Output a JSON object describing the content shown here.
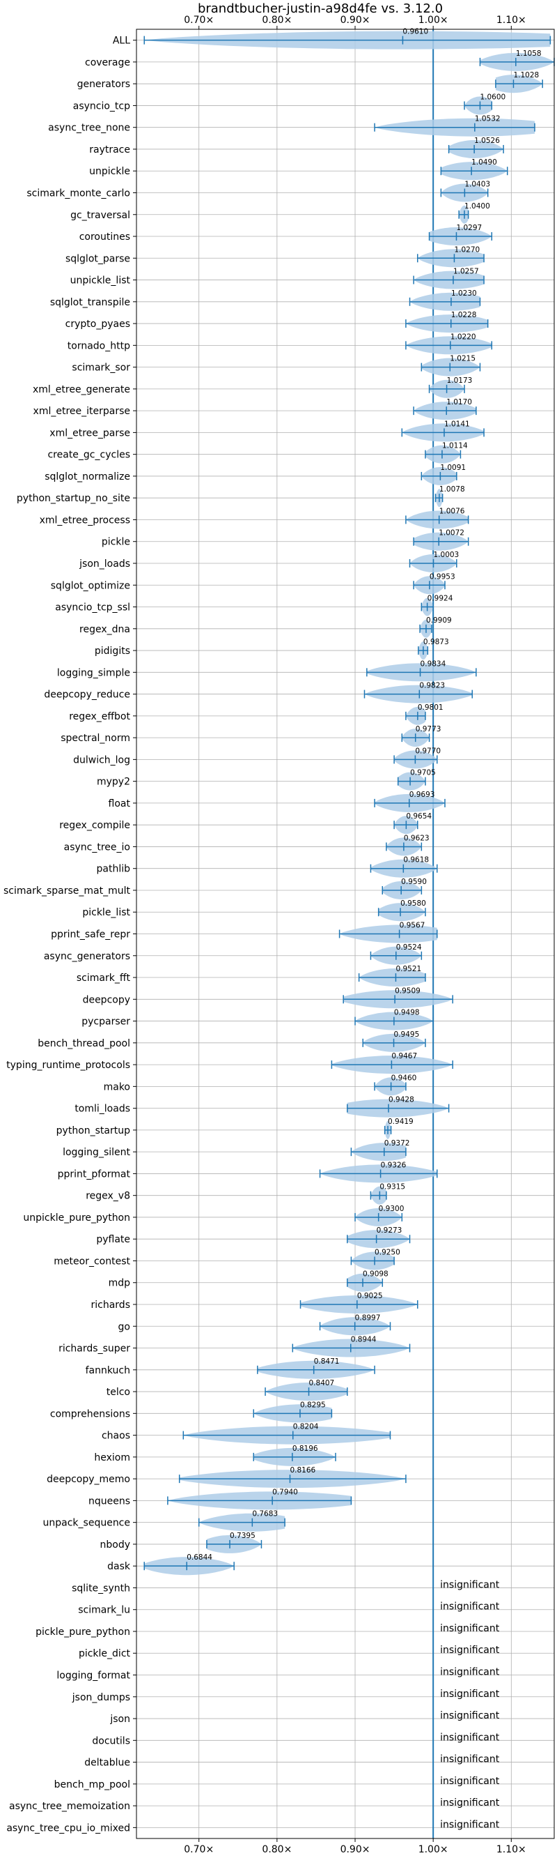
{
  "chart_data": {
    "type": "violin",
    "title": "brandtbucher-justin-a98d4fe vs. 3.12.0",
    "xlabel": "",
    "ylabel": "",
    "xlim": [
      0.62,
      1.155
    ],
    "x_ticks": [
      0.7,
      0.8,
      0.9,
      1.0,
      1.1
    ],
    "x_tick_labels": [
      "0.70×",
      "0.80×",
      "0.90×",
      "1.00×",
      "1.10×"
    ],
    "reference_line": 1.0,
    "grid": true,
    "colors": {
      "accent": "#1f77b4",
      "violin": "#aecde8",
      "grid": "#b0b0b0"
    },
    "benchmarks": [
      {
        "name": "ALL",
        "label": "0.9610",
        "min": 0.63,
        "max": 1.15,
        "median": 0.961
      },
      {
        "name": "coverage",
        "label": "1.1058",
        "min": 1.06,
        "max": 1.155,
        "median": 1.1058
      },
      {
        "name": "generators",
        "label": "1.1028",
        "min": 1.08,
        "max": 1.14,
        "median": 1.1028
      },
      {
        "name": "asyncio_tcp",
        "label": "1.0600",
        "min": 1.04,
        "max": 1.075,
        "median": 1.06
      },
      {
        "name": "async_tree_none",
        "label": "1.0532",
        "min": 0.925,
        "max": 1.13,
        "median": 1.0532
      },
      {
        "name": "raytrace",
        "label": "1.0526",
        "min": 1.02,
        "max": 1.09,
        "median": 1.0526
      },
      {
        "name": "unpickle",
        "label": "1.0490",
        "min": 1.01,
        "max": 1.095,
        "median": 1.049
      },
      {
        "name": "scimark_monte_carlo",
        "label": "1.0403",
        "min": 1.01,
        "max": 1.07,
        "median": 1.0403
      },
      {
        "name": "gc_traversal",
        "label": "1.0400",
        "min": 1.033,
        "max": 1.045,
        "median": 1.04
      },
      {
        "name": "coroutines",
        "label": "1.0297",
        "min": 0.995,
        "max": 1.075,
        "median": 1.0297
      },
      {
        "name": "sqlglot_parse",
        "label": "1.0270",
        "min": 0.98,
        "max": 1.065,
        "median": 1.027
      },
      {
        "name": "unpickle_list",
        "label": "1.0257",
        "min": 0.975,
        "max": 1.065,
        "median": 1.0257
      },
      {
        "name": "sqlglot_transpile",
        "label": "1.0230",
        "min": 0.97,
        "max": 1.06,
        "median": 1.023
      },
      {
        "name": "crypto_pyaes",
        "label": "1.0228",
        "min": 0.965,
        "max": 1.07,
        "median": 1.0228
      },
      {
        "name": "tornado_http",
        "label": "1.0220",
        "min": 0.965,
        "max": 1.075,
        "median": 1.022
      },
      {
        "name": "scimark_sor",
        "label": "1.0215",
        "min": 0.985,
        "max": 1.06,
        "median": 1.0215
      },
      {
        "name": "xml_etree_generate",
        "label": "1.0173",
        "min": 0.995,
        "max": 1.04,
        "median": 1.0173
      },
      {
        "name": "xml_etree_iterparse",
        "label": "1.0170",
        "min": 0.975,
        "max": 1.055,
        "median": 1.017
      },
      {
        "name": "xml_etree_parse",
        "label": "1.0141",
        "min": 0.96,
        "max": 1.065,
        "median": 1.0141
      },
      {
        "name": "create_gc_cycles",
        "label": "1.0114",
        "min": 0.99,
        "max": 1.035,
        "median": 1.0114
      },
      {
        "name": "sqlglot_normalize",
        "label": "1.0091",
        "min": 0.985,
        "max": 1.03,
        "median": 1.0091
      },
      {
        "name": "python_startup_no_site",
        "label": "1.0078",
        "min": 1.003,
        "max": 1.012,
        "median": 1.0078
      },
      {
        "name": "xml_etree_process",
        "label": "1.0076",
        "min": 0.965,
        "max": 1.045,
        "median": 1.0076
      },
      {
        "name": "pickle",
        "label": "1.0072",
        "min": 0.975,
        "max": 1.045,
        "median": 1.0072
      },
      {
        "name": "json_loads",
        "label": "1.0003",
        "min": 0.97,
        "max": 1.03,
        "median": 1.0003
      },
      {
        "name": "sqlglot_optimize",
        "label": "0.9953",
        "min": 0.975,
        "max": 1.015,
        "median": 0.9953
      },
      {
        "name": "asyncio_tcp_ssl",
        "label": "0.9924",
        "min": 0.985,
        "max": 1.0,
        "median": 0.9924
      },
      {
        "name": "regex_dna",
        "label": "0.9909",
        "min": 0.983,
        "max": 0.998,
        "median": 0.9909
      },
      {
        "name": "pidigits",
        "label": "0.9873",
        "min": 0.981,
        "max": 0.993,
        "median": 0.9873
      },
      {
        "name": "logging_simple",
        "label": "0.9834",
        "min": 0.915,
        "max": 1.055,
        "median": 0.9834
      },
      {
        "name": "deepcopy_reduce",
        "label": "0.9823",
        "min": 0.912,
        "max": 1.05,
        "median": 0.9823
      },
      {
        "name": "regex_effbot",
        "label": "0.9801",
        "min": 0.965,
        "max": 0.99,
        "median": 0.9801
      },
      {
        "name": "spectral_norm",
        "label": "0.9773",
        "min": 0.96,
        "max": 0.995,
        "median": 0.9773
      },
      {
        "name": "dulwich_log",
        "label": "0.9770",
        "min": 0.95,
        "max": 1.005,
        "median": 0.977
      },
      {
        "name": "mypy2",
        "label": "0.9705",
        "min": 0.955,
        "max": 0.99,
        "median": 0.9705
      },
      {
        "name": "float",
        "label": "0.9693",
        "min": 0.925,
        "max": 1.015,
        "median": 0.9693
      },
      {
        "name": "regex_compile",
        "label": "0.9654",
        "min": 0.95,
        "max": 0.98,
        "median": 0.9654
      },
      {
        "name": "async_tree_io",
        "label": "0.9623",
        "min": 0.94,
        "max": 0.985,
        "median": 0.9623
      },
      {
        "name": "pathlib",
        "label": "0.9618",
        "min": 0.92,
        "max": 1.005,
        "median": 0.9618
      },
      {
        "name": "scimark_sparse_mat_mult",
        "label": "0.9590",
        "min": 0.935,
        "max": 0.985,
        "median": 0.959
      },
      {
        "name": "pickle_list",
        "label": "0.9580",
        "min": 0.93,
        "max": 0.99,
        "median": 0.958
      },
      {
        "name": "pprint_safe_repr",
        "label": "0.9567",
        "min": 0.88,
        "max": 1.005,
        "median": 0.9567
      },
      {
        "name": "async_generators",
        "label": "0.9524",
        "min": 0.92,
        "max": 0.985,
        "median": 0.9524
      },
      {
        "name": "scimark_fft",
        "label": "0.9521",
        "min": 0.905,
        "max": 0.99,
        "median": 0.9521
      },
      {
        "name": "deepcopy",
        "label": "0.9509",
        "min": 0.885,
        "max": 1.025,
        "median": 0.9509
      },
      {
        "name": "pycparser",
        "label": "0.9498",
        "min": 0.9,
        "max": 1.0,
        "median": 0.9498
      },
      {
        "name": "bench_thread_pool",
        "label": "0.9495",
        "min": 0.91,
        "max": 0.99,
        "median": 0.9495
      },
      {
        "name": "typing_runtime_protocols",
        "label": "0.9467",
        "min": 0.87,
        "max": 1.025,
        "median": 0.9467
      },
      {
        "name": "mako",
        "label": "0.9460",
        "min": 0.925,
        "max": 0.965,
        "median": 0.946
      },
      {
        "name": "tomli_loads",
        "label": "0.9428",
        "min": 0.89,
        "max": 1.02,
        "median": 0.9428
      },
      {
        "name": "python_startup",
        "label": "0.9419",
        "min": 0.938,
        "max": 0.946,
        "median": 0.9419
      },
      {
        "name": "logging_silent",
        "label": "0.9372",
        "min": 0.895,
        "max": 0.965,
        "median": 0.9372
      },
      {
        "name": "pprint_pformat",
        "label": "0.9326",
        "min": 0.855,
        "max": 1.005,
        "median": 0.9326
      },
      {
        "name": "regex_v8",
        "label": "0.9315",
        "min": 0.92,
        "max": 0.94,
        "median": 0.9315
      },
      {
        "name": "unpickle_pure_python",
        "label": "0.9300",
        "min": 0.9,
        "max": 0.96,
        "median": 0.93
      },
      {
        "name": "pyflate",
        "label": "0.9273",
        "min": 0.89,
        "max": 0.97,
        "median": 0.9273
      },
      {
        "name": "meteor_contest",
        "label": "0.9250",
        "min": 0.895,
        "max": 0.95,
        "median": 0.925
      },
      {
        "name": "mdp",
        "label": "0.9098",
        "min": 0.89,
        "max": 0.935,
        "median": 0.9098
      },
      {
        "name": "richards",
        "label": "0.9025",
        "min": 0.83,
        "max": 0.98,
        "median": 0.9025
      },
      {
        "name": "go",
        "label": "0.8997",
        "min": 0.855,
        "max": 0.945,
        "median": 0.8997
      },
      {
        "name": "richards_super",
        "label": "0.8944",
        "min": 0.82,
        "max": 0.97,
        "median": 0.8944
      },
      {
        "name": "fannkuch",
        "label": "0.8471",
        "min": 0.775,
        "max": 0.925,
        "median": 0.8471
      },
      {
        "name": "telco",
        "label": "0.8407",
        "min": 0.785,
        "max": 0.89,
        "median": 0.8407
      },
      {
        "name": "comprehensions",
        "label": "0.8295",
        "min": 0.77,
        "max": 0.87,
        "median": 0.8295
      },
      {
        "name": "chaos",
        "label": "0.8204",
        "min": 0.68,
        "max": 0.945,
        "median": 0.8204
      },
      {
        "name": "hexiom",
        "label": "0.8196",
        "min": 0.77,
        "max": 0.875,
        "median": 0.8196
      },
      {
        "name": "deepcopy_memo",
        "label": "0.8166",
        "min": 0.675,
        "max": 0.965,
        "median": 0.8166
      },
      {
        "name": "nqueens",
        "label": "0.7940",
        "min": 0.66,
        "max": 0.895,
        "median": 0.794
      },
      {
        "name": "unpack_sequence",
        "label": "0.7683",
        "min": 0.7,
        "max": 0.81,
        "median": 0.7683
      },
      {
        "name": "nbody",
        "label": "0.7395",
        "min": 0.71,
        "max": 0.78,
        "median": 0.7395
      },
      {
        "name": "dask",
        "label": "0.6844",
        "min": 0.63,
        "max": 0.745,
        "median": 0.6844
      },
      {
        "name": "sqlite_synth",
        "label": "insignificant"
      },
      {
        "name": "scimark_lu",
        "label": "insignificant"
      },
      {
        "name": "pickle_pure_python",
        "label": "insignificant"
      },
      {
        "name": "pickle_dict",
        "label": "insignificant"
      },
      {
        "name": "logging_format",
        "label": "insignificant"
      },
      {
        "name": "json_dumps",
        "label": "insignificant"
      },
      {
        "name": "json",
        "label": "insignificant"
      },
      {
        "name": "docutils",
        "label": "insignificant"
      },
      {
        "name": "deltablue",
        "label": "insignificant"
      },
      {
        "name": "bench_mp_pool",
        "label": "insignificant"
      },
      {
        "name": "async_tree_memoization",
        "label": "insignificant"
      },
      {
        "name": "async_tree_cpu_io_mixed",
        "label": "insignificant"
      }
    ]
  }
}
